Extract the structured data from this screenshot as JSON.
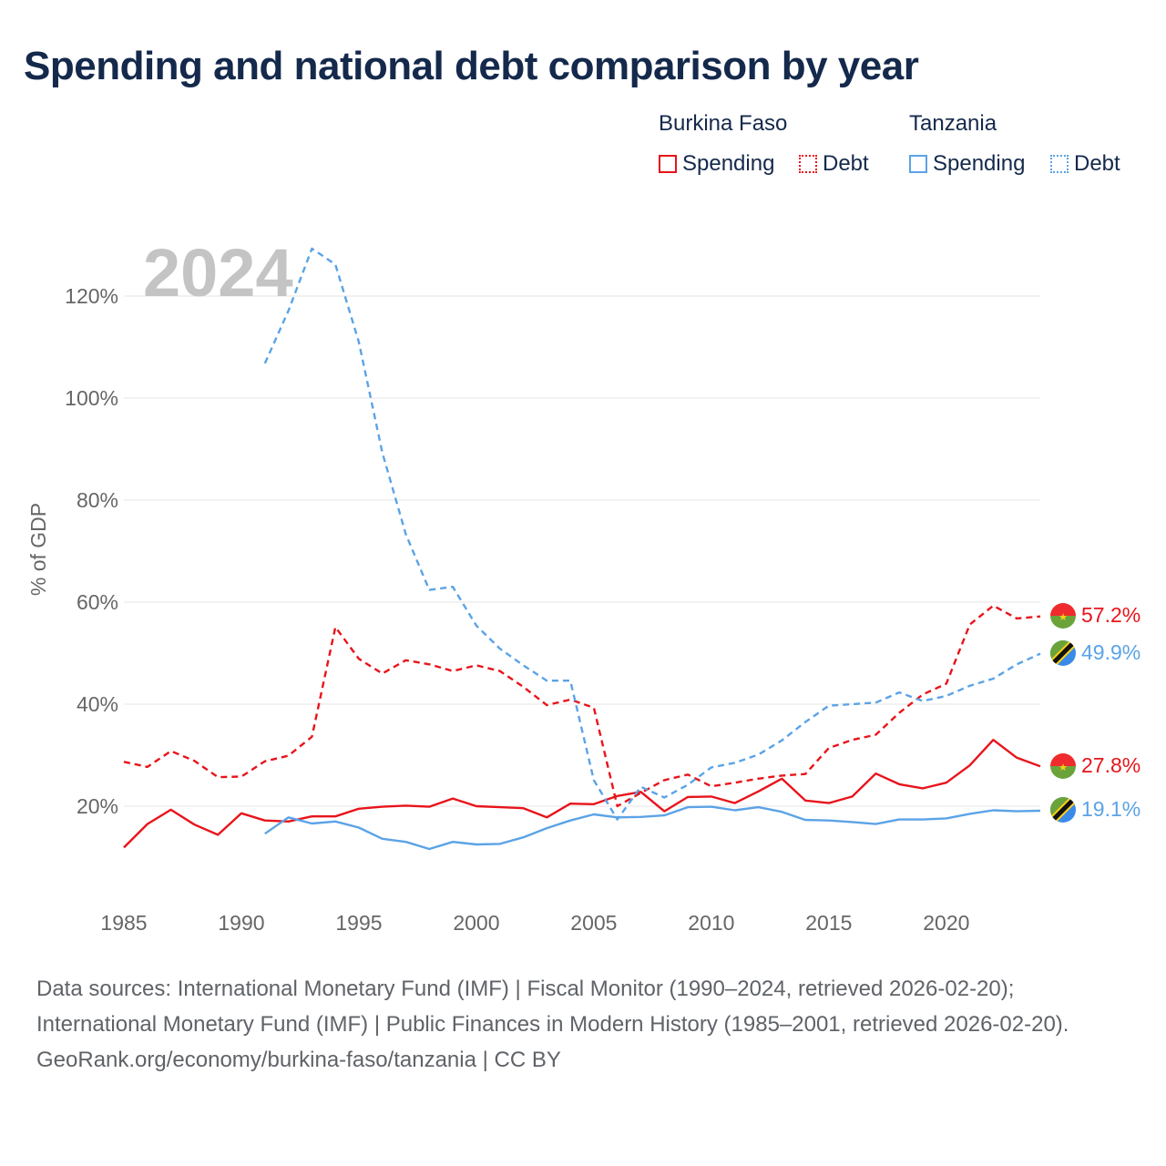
{
  "title": "Spending and national debt comparison by year",
  "legend": {
    "groups": [
      {
        "name": "Burkina Faso",
        "items": [
          {
            "label": "Spending",
            "style": "solid"
          },
          {
            "label": "Debt",
            "style": "dotted"
          }
        ],
        "color": "#e8141b"
      },
      {
        "name": "Tanzania",
        "items": [
          {
            "label": "Spending",
            "style": "solid"
          },
          {
            "label": "Debt",
            "style": "dotted"
          }
        ],
        "color": "#5ba3e6"
      }
    ]
  },
  "colors": {
    "burkina": "#e8141b",
    "tanzania": "#5ba3e6",
    "grid": "#e6e6e6",
    "axis_text": "#666666",
    "year_watermark": "#c4c4c4"
  },
  "chart_data": {
    "type": "line",
    "title": "Spending and national debt comparison by year",
    "year_label": "2024",
    "ylabel": "% of GDP",
    "xlabel": "",
    "xlim": [
      1985,
      2024
    ],
    "ylim": [
      0,
      135
    ],
    "x_ticks": [
      1985,
      1990,
      1995,
      2000,
      2005,
      2010,
      2015,
      2020
    ],
    "y_ticks": [
      20,
      40,
      60,
      80,
      100,
      120
    ],
    "y_tick_labels": [
      "20%",
      "40%",
      "60%",
      "80%",
      "100%",
      "120%"
    ],
    "series": [
      {
        "name": "Burkina Faso Spending",
        "country": "Burkina Faso",
        "metric": "Spending",
        "color": "#e8141b",
        "dash": false,
        "x": [
          1985,
          1986,
          1987,
          1988,
          1989,
          1990,
          1991,
          1992,
          1993,
          1994,
          1995,
          1996,
          1997,
          1998,
          1999,
          2000,
          2001,
          2002,
          2003,
          2004,
          2005,
          2006,
          2007,
          2008,
          2009,
          2010,
          2011,
          2012,
          2013,
          2014,
          2015,
          2016,
          2017,
          2018,
          2019,
          2020,
          2021,
          2022,
          2023,
          2024
        ],
        "values": [
          11.9,
          16.5,
          19.3,
          16.4,
          14.4,
          18.6,
          17.2,
          17.0,
          18.0,
          18.0,
          19.5,
          19.9,
          20.1,
          19.9,
          21.5,
          20.0,
          19.8,
          19.6,
          17.8,
          20.5,
          20.4,
          22.0,
          22.8,
          19.0,
          21.8,
          21.9,
          20.6,
          22.9,
          25.4,
          21.1,
          20.6,
          21.9,
          26.4,
          24.3,
          23.5,
          24.6,
          28.0,
          33.0,
          29.5,
          27.8
        ],
        "end_label": "27.8%"
      },
      {
        "name": "Burkina Faso Debt",
        "country": "Burkina Faso",
        "metric": "Debt",
        "color": "#e8141b",
        "dash": true,
        "x": [
          1985,
          1986,
          1987,
          1988,
          1989,
          1990,
          1991,
          1992,
          1993,
          1994,
          1995,
          1996,
          1997,
          1998,
          1999,
          2000,
          2001,
          2002,
          2003,
          2004,
          2005,
          2006,
          2007,
          2008,
          2009,
          2010,
          2011,
          2012,
          2013,
          2014,
          2015,
          2016,
          2017,
          2018,
          2019,
          2020,
          2021,
          2022,
          2023,
          2024
        ],
        "values": [
          28.7,
          27.7,
          30.8,
          28.9,
          25.7,
          25.8,
          28.8,
          29.9,
          33.6,
          55.1,
          48.9,
          46.0,
          48.6,
          47.8,
          46.5,
          47.6,
          46.5,
          43.4,
          39.8,
          40.9,
          39.3,
          20.0,
          22.6,
          25.1,
          26.2,
          23.9,
          24.6,
          25.4,
          26.0,
          26.3,
          31.4,
          33.0,
          34.0,
          38.3,
          41.9,
          44.0,
          55.6,
          59.3,
          56.8,
          57.2
        ],
        "end_label": "57.2%"
      },
      {
        "name": "Tanzania Spending",
        "country": "Tanzania",
        "metric": "Spending",
        "color": "#5ba3e6",
        "dash": false,
        "x": [
          1991,
          1992,
          1993,
          1994,
          1995,
          1996,
          1997,
          1998,
          1999,
          2000,
          2001,
          2002,
          2003,
          2004,
          2005,
          2006,
          2007,
          2008,
          2009,
          2010,
          2011,
          2012,
          2013,
          2014,
          2015,
          2016,
          2017,
          2018,
          2019,
          2020,
          2021,
          2022,
          2023,
          2024
        ],
        "values": [
          14.6,
          17.8,
          16.6,
          17.0,
          15.8,
          13.6,
          13.0,
          11.6,
          13.0,
          12.5,
          12.6,
          13.9,
          15.7,
          17.2,
          18.4,
          17.8,
          17.9,
          18.2,
          19.8,
          19.9,
          19.2,
          19.8,
          18.9,
          17.3,
          17.2,
          16.9,
          16.5,
          17.4,
          17.4,
          17.6,
          18.5,
          19.2,
          19.0,
          19.1
        ],
        "end_label": "19.1%"
      },
      {
        "name": "Tanzania Debt",
        "country": "Tanzania",
        "metric": "Debt",
        "color": "#5ba3e6",
        "dash": true,
        "x": [
          1991,
          1992,
          1993,
          1994,
          1995,
          1996,
          1997,
          1998,
          1999,
          2000,
          2001,
          2002,
          2003,
          2004,
          2005,
          2006,
          2007,
          2008,
          2009,
          2010,
          2011,
          2012,
          2013,
          2014,
          2015,
          2016,
          2017,
          2018,
          2019,
          2020,
          2021,
          2022,
          2023,
          2024
        ],
        "values": [
          106.8,
          117.1,
          129.3,
          126.2,
          111.0,
          89.3,
          73.3,
          62.4,
          63.0,
          55.4,
          50.9,
          47.6,
          44.6,
          44.6,
          25.1,
          17.4,
          23.8,
          21.7,
          24.2,
          27.6,
          28.5,
          30.1,
          32.9,
          36.5,
          39.7,
          40.0,
          40.3,
          42.3,
          40.6,
          41.6,
          43.6,
          45.0,
          47.8,
          49.9
        ],
        "end_label": "49.9%"
      }
    ]
  },
  "source": {
    "line1": "Data sources: International Monetary Fund (IMF) | Fiscal Monitor (1990–2024, retrieved 2026-02-20); International Monetary Fund (IMF) | Public Finances in Modern History (1985–2001, retrieved 2026-02-20).",
    "line2": "GeoRank.org/economy/burkina-faso/tanzania | CC BY"
  }
}
